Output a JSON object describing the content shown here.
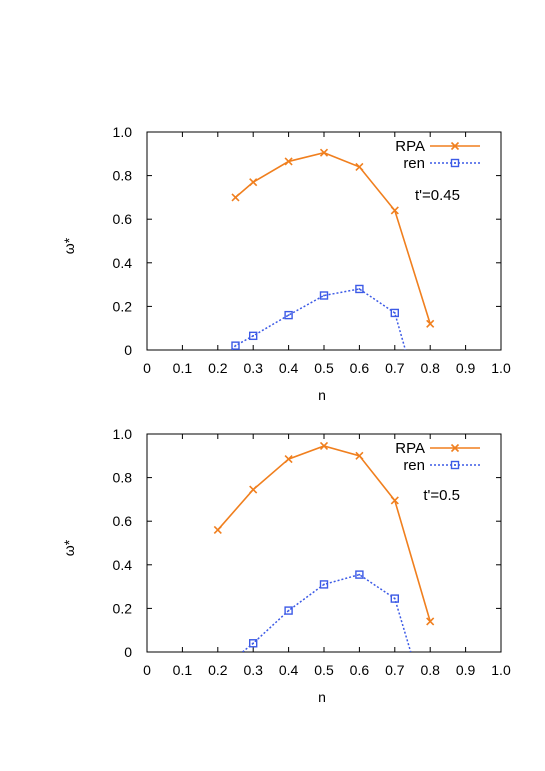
{
  "chart_data": [
    {
      "type": "line",
      "annotation": "t'=0.45",
      "xlabel": "n",
      "ylabel": "ω*",
      "xlim": [
        0,
        1.0
      ],
      "ylim": [
        0,
        1.0
      ],
      "x_ticks": [
        "0",
        "0.1",
        "0.2",
        "0.3",
        "0.4",
        "0.5",
        "0.6",
        "0.7",
        "0.8",
        "0.9",
        "1.0"
      ],
      "y_ticks": [
        "0",
        "0.2",
        "0.4",
        "0.6",
        "0.8",
        "1.0"
      ],
      "legend_position": "top-right",
      "grid": false,
      "series": [
        {
          "name": "RPA",
          "color": "#f07f1e",
          "marker": "x",
          "line": "solid",
          "x": [
            0.25,
            0.3,
            0.4,
            0.5,
            0.6,
            0.7,
            0.8
          ],
          "y": [
            0.7,
            0.77,
            0.865,
            0.905,
            0.84,
            0.64,
            0.12
          ]
        },
        {
          "name": "ren",
          "color": "#3c5ae6",
          "marker": "square",
          "line": "dotted",
          "x": [
            0.24,
            0.25,
            0.3,
            0.4,
            0.5,
            0.6,
            0.7,
            0.73
          ],
          "y": [
            0.0,
            0.02,
            0.065,
            0.16,
            0.25,
            0.28,
            0.17,
            0.0
          ],
          "markers_at": [
            1,
            2,
            3,
            4,
            5,
            6
          ]
        }
      ]
    },
    {
      "type": "line",
      "annotation": "t'=0.5",
      "xlabel": "n",
      "ylabel": "ω*",
      "xlim": [
        0,
        1.0
      ],
      "ylim": [
        0,
        1.0
      ],
      "x_ticks": [
        "0",
        "0.1",
        "0.2",
        "0.3",
        "0.4",
        "0.5",
        "0.6",
        "0.7",
        "0.8",
        "0.9",
        "1.0"
      ],
      "y_ticks": [
        "0",
        "0.2",
        "0.4",
        "0.6",
        "0.8",
        "1.0"
      ],
      "legend_position": "top-right",
      "grid": false,
      "series": [
        {
          "name": "RPA",
          "color": "#f07f1e",
          "marker": "x",
          "line": "solid",
          "x": [
            0.2,
            0.3,
            0.4,
            0.5,
            0.6,
            0.7,
            0.8
          ],
          "y": [
            0.56,
            0.745,
            0.885,
            0.945,
            0.9,
            0.695,
            0.14
          ]
        },
        {
          "name": "ren",
          "color": "#3c5ae6",
          "marker": "square",
          "line": "dotted",
          "x": [
            0.27,
            0.3,
            0.4,
            0.5,
            0.6,
            0.7,
            0.745
          ],
          "y": [
            0.0,
            0.04,
            0.19,
            0.31,
            0.355,
            0.245,
            0.0
          ],
          "markers_at": [
            1,
            2,
            3,
            4,
            5
          ]
        }
      ]
    }
  ]
}
